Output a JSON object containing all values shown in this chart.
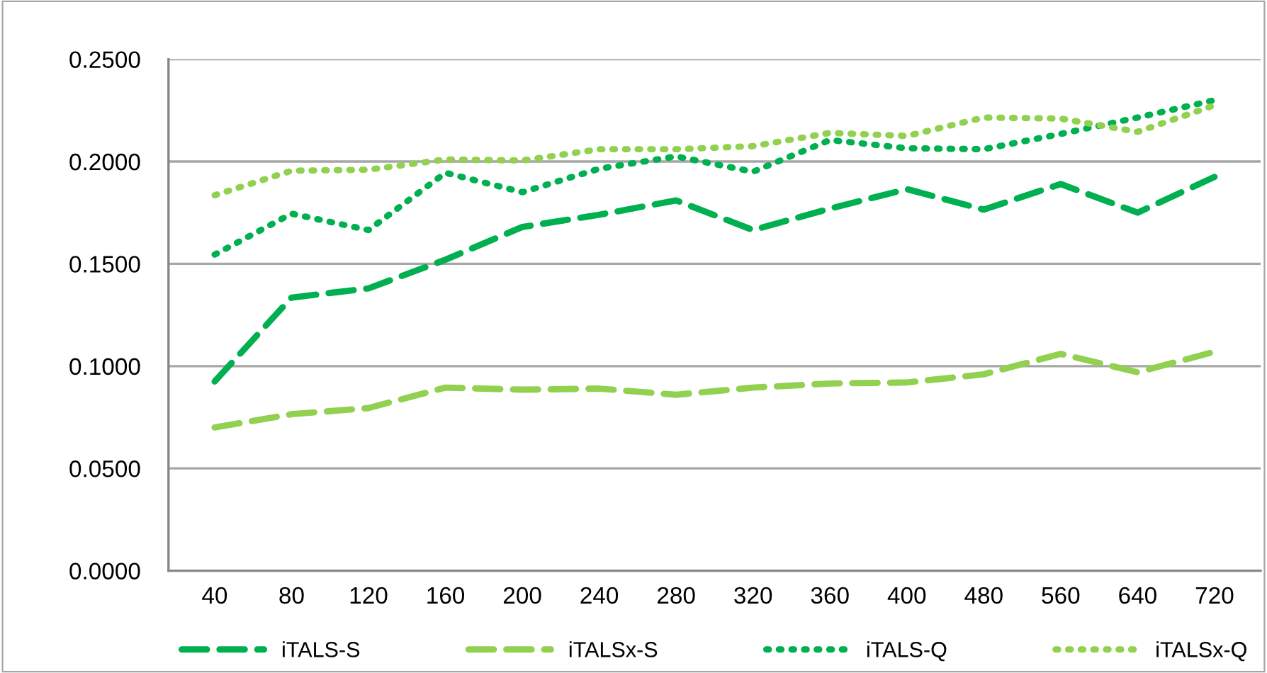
{
  "chart_data": {
    "type": "line",
    "categories": [
      "40",
      "80",
      "120",
      "160",
      "200",
      "240",
      "280",
      "320",
      "360",
      "400",
      "480",
      "560",
      "640",
      "720"
    ],
    "series": [
      {
        "name": "iTALS-S",
        "color": "#00b050",
        "line_style": "dashed",
        "values": [
          0.0925,
          0.1335,
          0.138,
          0.152,
          0.168,
          0.174,
          0.181,
          0.1665,
          0.177,
          0.1865,
          0.1765,
          0.189,
          0.175,
          0.1925
        ]
      },
      {
        "name": "iTALSx-S",
        "color": "#92d050",
        "line_style": "dashed",
        "values": [
          0.07,
          0.0765,
          0.0795,
          0.0895,
          0.0885,
          0.089,
          0.086,
          0.0895,
          0.0915,
          0.092,
          0.096,
          0.106,
          0.097,
          0.107
        ]
      },
      {
        "name": "iTALS-Q",
        "color": "#00b050",
        "line_style": "dotted",
        "values": [
          0.1545,
          0.1745,
          0.1665,
          0.1945,
          0.185,
          0.1965,
          0.2025,
          0.195,
          0.2105,
          0.2065,
          0.206,
          0.2135,
          0.2215,
          0.23
        ]
      },
      {
        "name": "iTALSx-Q",
        "color": "#92d050",
        "line_style": "dotted",
        "values": [
          0.1835,
          0.1955,
          0.196,
          0.201,
          0.2005,
          0.206,
          0.206,
          0.2075,
          0.214,
          0.2125,
          0.2215,
          0.221,
          0.2145,
          0.2275
        ]
      }
    ],
    "ylim": [
      0,
      0.25
    ],
    "yticks": [
      {
        "value": 0,
        "label": "0.0000"
      },
      {
        "value": 0.05,
        "label": "0.0500"
      },
      {
        "value": 0.1,
        "label": "0.1000"
      },
      {
        "value": 0.15,
        "label": "0.1500"
      },
      {
        "value": 0.2,
        "label": "0.2000"
      },
      {
        "value": 0.25,
        "label": "0.2500"
      }
    ],
    "grid": "y",
    "legend": "bottom",
    "marker": "none"
  }
}
